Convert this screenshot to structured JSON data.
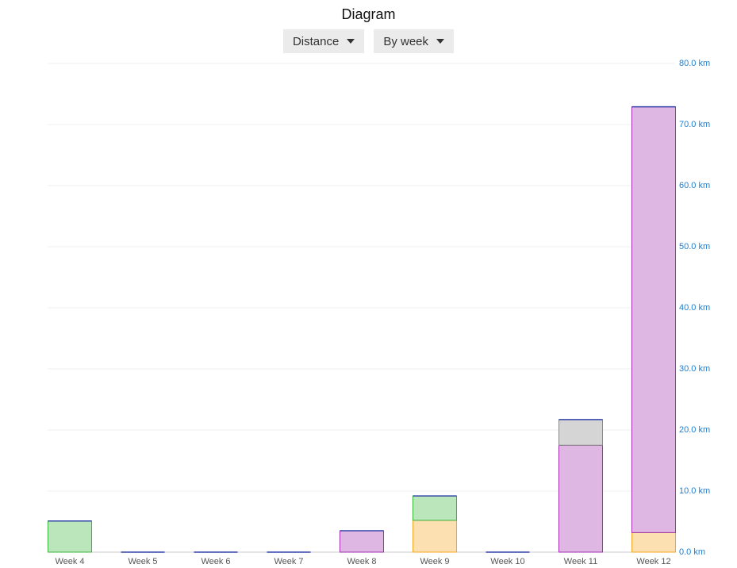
{
  "controls": [
    "Distance",
    "By week"
  ],
  "chart_data": {
    "type": "stacked-bar",
    "title": "Diagram",
    "categories": [
      "Week 4",
      "Week 5",
      "Week 6",
      "Week 7",
      "Week 8",
      "Week 9",
      "Week 10",
      "Week 11",
      "Week 12"
    ],
    "series": [
      {
        "color": "#f5a623",
        "values": [
          0,
          0,
          0,
          0,
          0,
          5.2,
          0,
          0,
          3.2
        ]
      },
      {
        "color": "#3cb43c",
        "values": [
          5.1,
          0,
          0,
          0,
          0,
          4.0,
          0,
          0,
          0
        ]
      },
      {
        "color": "#a030b0",
        "values": [
          0,
          0,
          0,
          0,
          3.5,
          0,
          0,
          17.5,
          69.7
        ]
      },
      {
        "color": "#888888",
        "values": [
          0,
          0,
          0,
          0,
          0,
          0,
          0,
          4.2,
          0
        ]
      }
    ],
    "ylim": [
      0,
      80
    ],
    "yticks": [
      {
        "value": 0,
        "label": "0.0 km"
      },
      {
        "value": 10,
        "label": "10.0 km"
      },
      {
        "value": 20,
        "label": "20.0 km"
      },
      {
        "value": 30,
        "label": "30.0 km"
      },
      {
        "value": 40,
        "label": "40.0 km"
      },
      {
        "value": 50,
        "label": "50.0 km"
      },
      {
        "value": 60,
        "label": "60.0 km"
      },
      {
        "value": 70,
        "label": "70.0 km"
      },
      {
        "value": 80,
        "label": "80.0 km"
      }
    ],
    "grid": true
  }
}
